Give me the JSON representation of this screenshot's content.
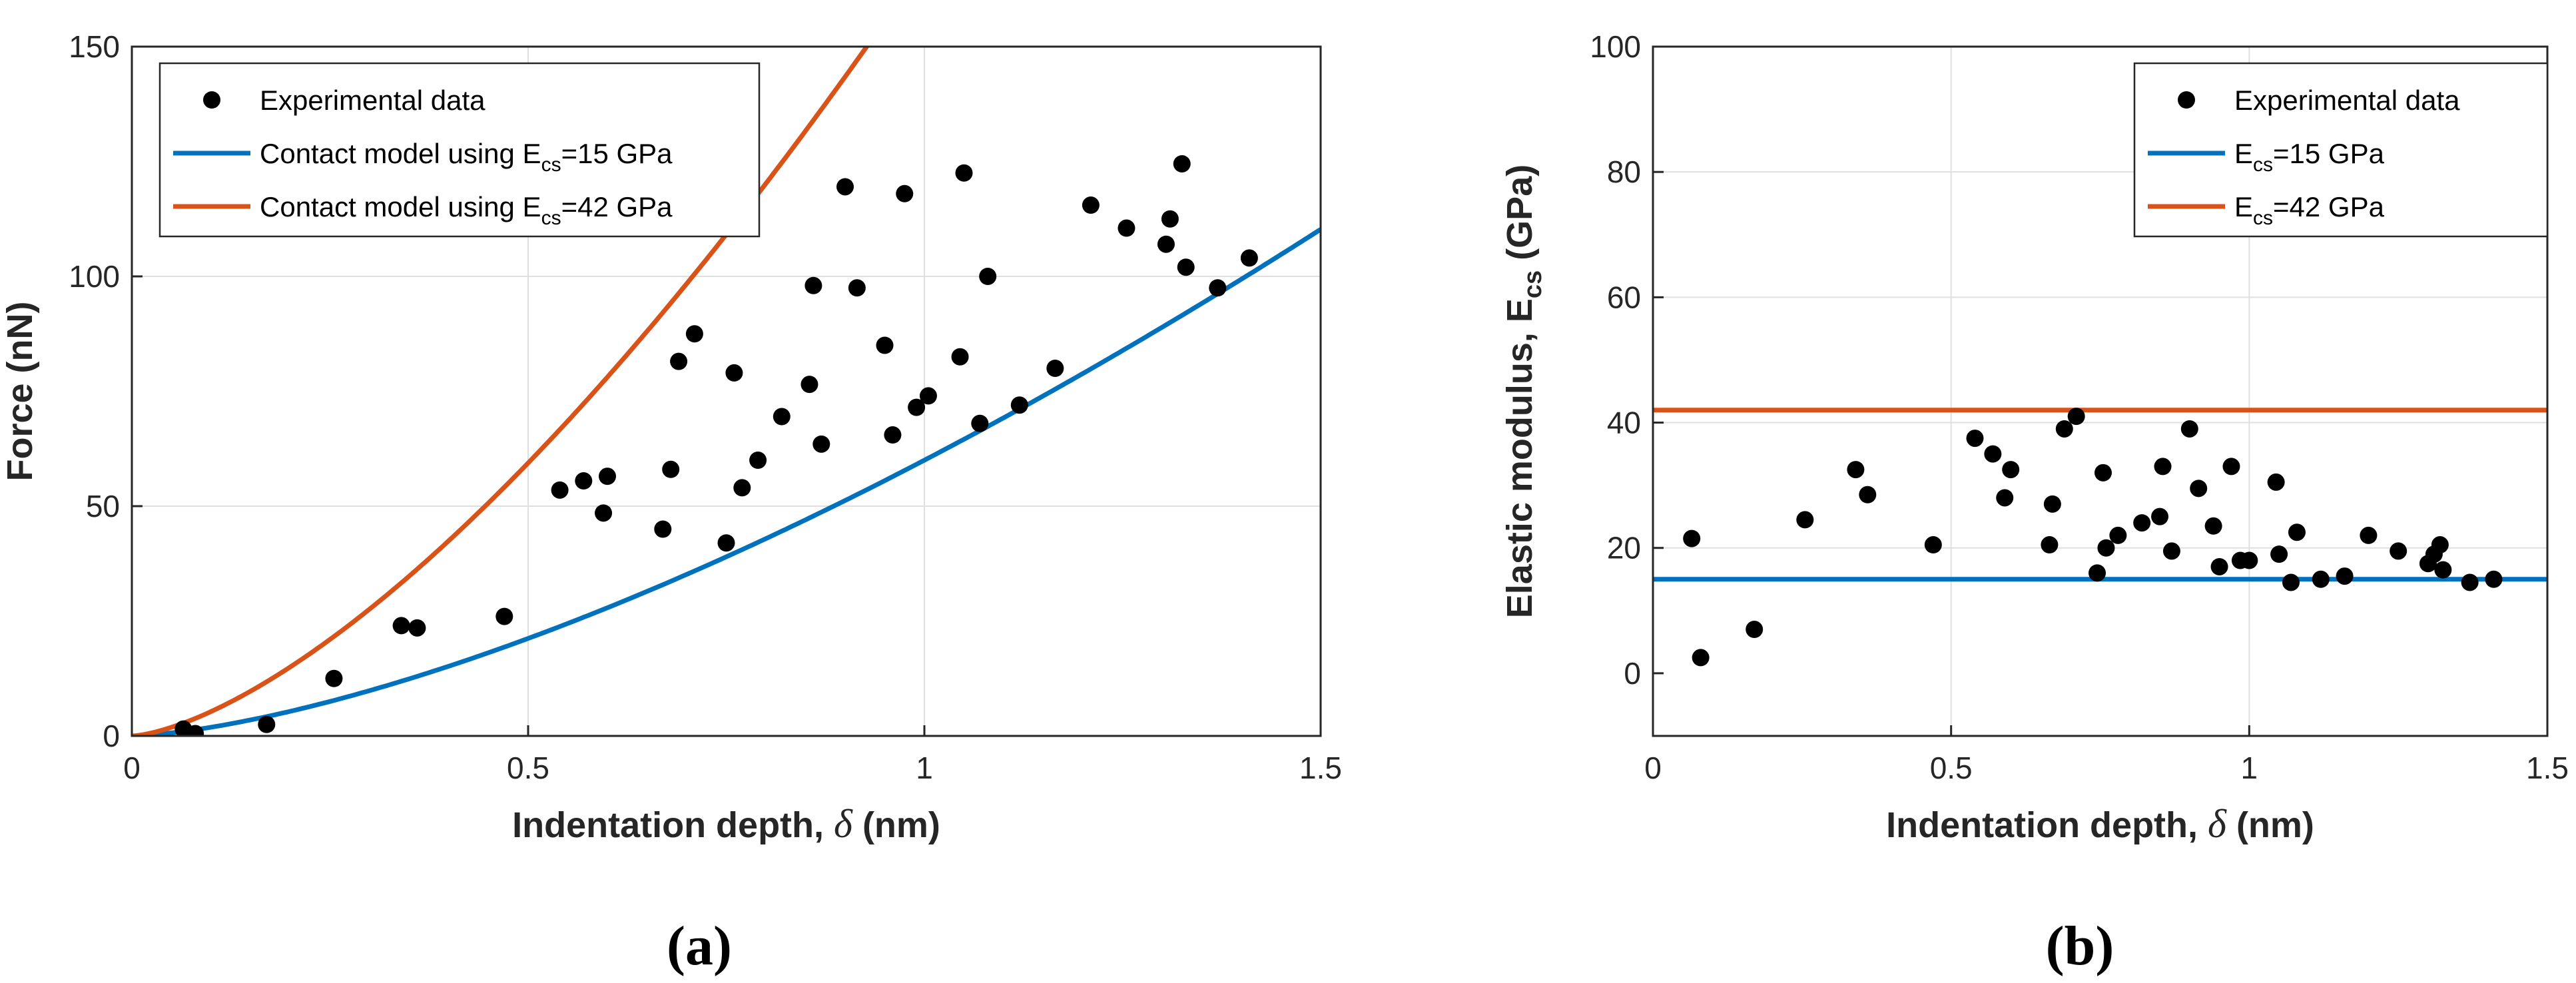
{
  "colors": {
    "blue": "#0072BD",
    "orange": "#D95319",
    "points": "#000000",
    "axis": "#262626",
    "grid": "#dfdfdf"
  },
  "chart_data": [
    {
      "type": "scatter",
      "panel_label": "(a)",
      "title": "",
      "xlabel": "Indentation depth, δ (nm)",
      "ylabel": "Force (nN)",
      "xlim": [
        0,
        1.5
      ],
      "ylim": [
        0,
        150
      ],
      "xticks": [
        0,
        0.5,
        1,
        1.5
      ],
      "xtick_labels": [
        "0",
        "0.5",
        "1",
        "1.5"
      ],
      "yticks": [
        0,
        50,
        100,
        150
      ],
      "ytick_labels": [
        "0",
        "50",
        "100",
        "150"
      ],
      "grid": true,
      "legend_position": "top-left",
      "legend": [
        {
          "text": "Experimental data",
          "style": "marker"
        },
        {
          "text": "Contact model using E",
          "sub": "cs",
          "after": "=15 GPa",
          "style": "line",
          "color": "#0072BD"
        },
        {
          "text": "Contact model using E",
          "sub": "cs",
          "after": "=42 GPa",
          "style": "line",
          "color": "#D95319"
        }
      ],
      "series": [
        {
          "name": "Experimental data",
          "kind": "scatter",
          "x": [
            0.065,
            0.08,
            0.17,
            0.255,
            0.34,
            0.36,
            0.47,
            0.54,
            0.57,
            0.595,
            0.6,
            0.67,
            0.68,
            0.69,
            0.71,
            0.75,
            0.76,
            0.77,
            0.79,
            0.82,
            0.855,
            0.86,
            0.87,
            0.9,
            0.915,
            0.95,
            0.96,
            0.975,
            0.99,
            1.005,
            1.045,
            1.05,
            1.07,
            1.08,
            1.12,
            1.165,
            1.21,
            1.255,
            1.305,
            1.31,
            1.325,
            1.33,
            1.37,
            1.41
          ],
          "y": [
            1.5,
            0.5,
            2.5,
            12.5,
            24,
            23.5,
            26,
            53.5,
            55.5,
            48.5,
            56.5,
            45,
            58,
            81.5,
            87.5,
            42,
            79,
            54,
            60,
            69.5,
            76.5,
            98,
            63.5,
            119.5,
            97.5,
            85,
            65.5,
            118,
            71.5,
            74,
            82.5,
            122.5,
            68,
            100,
            72,
            80,
            115.5,
            110.5,
            107,
            112.5,
            124.5,
            102,
            97.5,
            104
          ]
        },
        {
          "name": "E_cs=15 GPa",
          "kind": "power_curve",
          "coefficient": 60,
          "exponent": 1.5,
          "color": "#0072BD"
        },
        {
          "name": "E_cs=42 GPa",
          "kind": "power_curve",
          "coefficient": 168,
          "exponent": 1.5,
          "color": "#D95319"
        }
      ]
    },
    {
      "type": "scatter",
      "panel_label": "(b)",
      "title": "",
      "xlabel": "Indentation depth, δ (nm)",
      "ylabel": "Elastic modulus, E",
      "ylabel_sub": "cs",
      "ylabel_after": " (GPa)",
      "xlim": [
        0,
        1.5
      ],
      "ylim": [
        -10,
        100
      ],
      "xticks": [
        0,
        0.5,
        1,
        1.5
      ],
      "xtick_labels": [
        "0",
        "0.5",
        "1",
        "1.5"
      ],
      "yticks": [
        0,
        20,
        40,
        60,
        80,
        100
      ],
      "ytick_labels": [
        "0",
        "20",
        "40",
        "60",
        "80",
        "100"
      ],
      "grid": true,
      "legend_position": "top-right",
      "legend": [
        {
          "text": "Experimental data",
          "style": "marker"
        },
        {
          "text": "E",
          "sub": "cs",
          "after": "=15 GPa",
          "style": "line",
          "color": "#0072BD"
        },
        {
          "text": "E",
          "sub": "cs",
          "after": "=42 GPa",
          "style": "line",
          "color": "#D95319"
        }
      ],
      "series": [
        {
          "name": "Experimental data",
          "kind": "scatter",
          "x": [
            0.065,
            0.08,
            0.17,
            0.255,
            0.34,
            0.36,
            0.47,
            0.54,
            0.57,
            0.59,
            0.6,
            0.665,
            0.67,
            0.69,
            0.71,
            0.745,
            0.755,
            0.76,
            0.78,
            0.82,
            0.85,
            0.855,
            0.87,
            0.9,
            0.915,
            0.94,
            0.95,
            0.97,
            0.985,
            1.0,
            1.045,
            1.05,
            1.07,
            1.08,
            1.12,
            1.16,
            1.2,
            1.25,
            1.3,
            1.31,
            1.32,
            1.325,
            1.37,
            1.41
          ],
          "y": [
            21.5,
            2.5,
            7,
            24.5,
            32.5,
            28.5,
            20.5,
            37.5,
            35,
            28,
            32.5,
            20.5,
            27,
            39,
            41,
            16,
            32,
            20,
            22,
            24,
            25,
            33,
            19.5,
            39,
            29.5,
            23.5,
            17,
            33,
            18,
            18,
            30.5,
            19,
            14.5,
            22.5,
            15,
            15.5,
            22,
            19.5,
            17.5,
            19,
            20.5,
            16.5,
            14.5,
            15
          ]
        },
        {
          "name": "E_cs=15 GPa",
          "kind": "hline",
          "value": 15,
          "color": "#0072BD"
        },
        {
          "name": "E_cs=42 GPa",
          "kind": "hline",
          "value": 42,
          "color": "#D95319"
        }
      ]
    }
  ]
}
